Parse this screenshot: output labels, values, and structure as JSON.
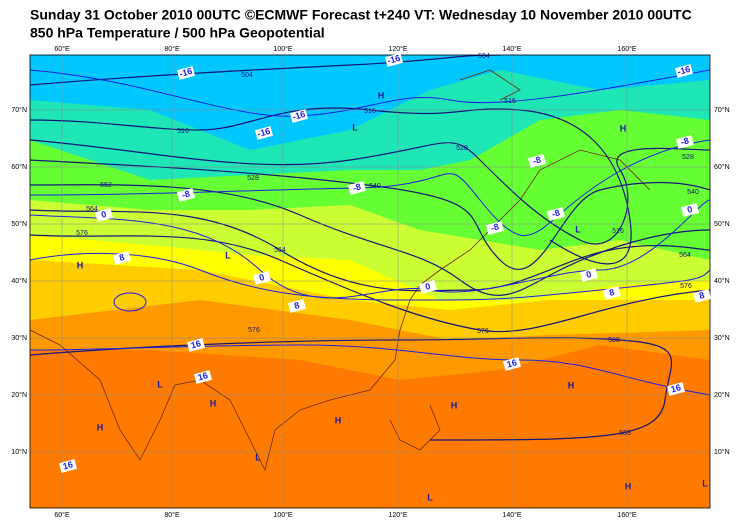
{
  "header": {
    "title": "Sunday 31 October 2010 00UTC ©ECMWF Forecast t+240 VT: Wednesday 10 November 2010 00UTC",
    "subtitle": "850 hPa Temperature / 500 hPa Geopotential"
  },
  "map": {
    "longitude_labels": [
      "60°E",
      "80°E",
      "100°E",
      "120°E",
      "140°E",
      "160°E"
    ],
    "latitude_labels": [
      "70°N",
      "60°N",
      "50°N",
      "40°N",
      "30°N",
      "20°N",
      "10°N"
    ],
    "temperature_labels": [
      "-16",
      "-16",
      "-16",
      "-16",
      "-16",
      "-8",
      "-8",
      "-8",
      "-8",
      "-8",
      "-8",
      "0",
      "0",
      "0",
      "0",
      "0",
      "8",
      "8",
      "8",
      "8",
      "16",
      "16",
      "16",
      "16",
      "16"
    ],
    "height_labels": [
      "504",
      "504",
      "516",
      "516",
      "516",
      "516",
      "528",
      "528",
      "528",
      "540",
      "540",
      "552",
      "564",
      "564",
      "564",
      "576",
      "576",
      "576",
      "576",
      "588",
      "588"
    ],
    "pressure_centres": [
      "H",
      "L",
      "H",
      "H",
      "L",
      "L",
      "L",
      "H",
      "H",
      "H",
      "H",
      "H",
      "H",
      "L",
      "L",
      "L"
    ]
  }
}
